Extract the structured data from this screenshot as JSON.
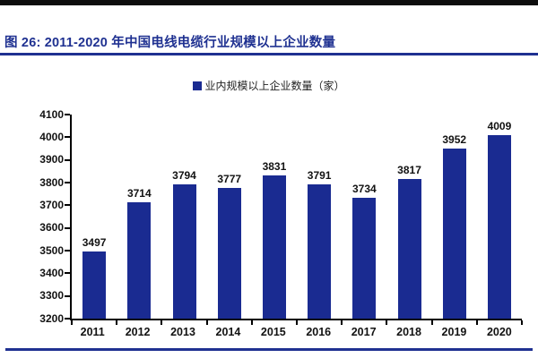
{
  "figure": {
    "title": "图 26: 2011-2020 年中国电线电缆行业规模以上企业数量"
  },
  "legend": {
    "swatch_icon": "filled-square",
    "label": "业内规模以上企业数量（家）"
  },
  "colors": {
    "bar": "#1a2b91",
    "accent_navy": "#1f3191",
    "axis": "#000000",
    "top_bar": "#0d0d0d"
  },
  "chart_data": {
    "type": "bar",
    "title": "图 26: 2011-2020 年中国电线电缆行业规模以上企业数量",
    "legend_entries": [
      "业内规模以上企业数量（家）"
    ],
    "legend_position": "top-center",
    "categories": [
      "2011",
      "2012",
      "2013",
      "2014",
      "2015",
      "2016",
      "2017",
      "2018",
      "2019",
      "2020"
    ],
    "series": [
      {
        "name": "业内规模以上企业数量（家）",
        "values": [
          3497,
          3714,
          3794,
          3777,
          3831,
          3791,
          3734,
          3817,
          3952,
          4009
        ]
      }
    ],
    "data_labels": true,
    "xlabel": "",
    "ylabel": "",
    "ylim": [
      3200,
      4100
    ],
    "ytick_step": 100,
    "grid": false,
    "bar_color": "#1a2b91"
  }
}
